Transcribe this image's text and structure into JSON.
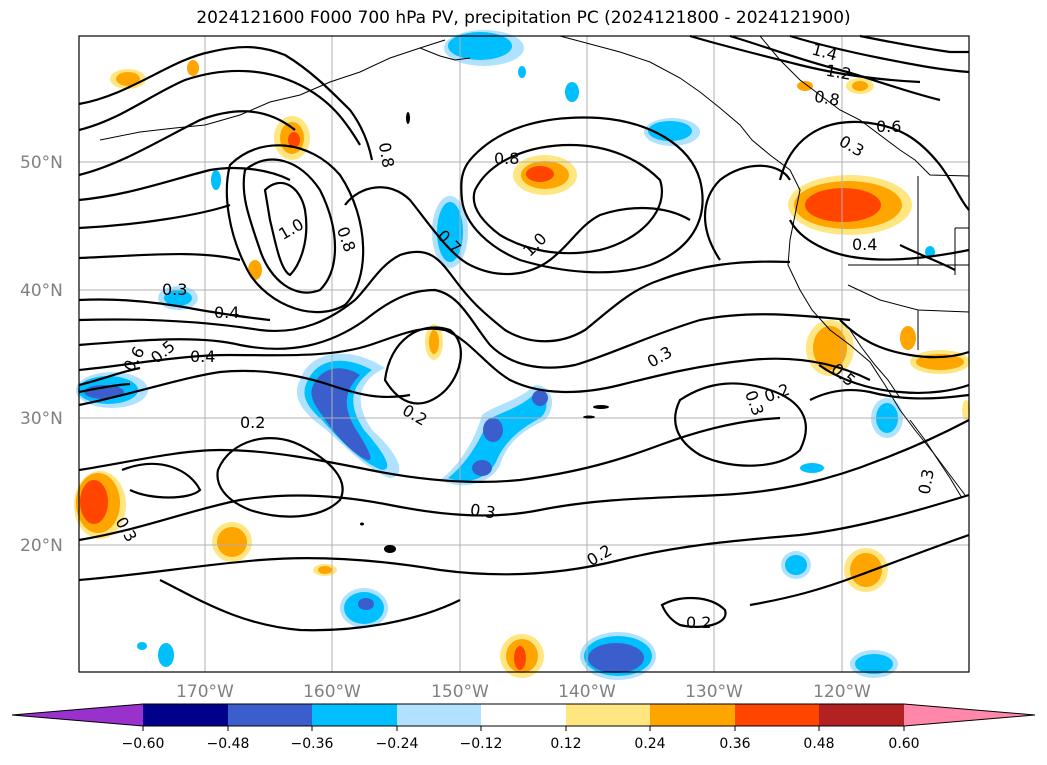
{
  "title": "2024121600 F000 700 hPa PV, precipitation PC (2024121800 - 2024121900)",
  "lat_labels": [
    "20°N",
    "30°N",
    "40°N",
    "50°N"
  ],
  "lon_labels": [
    "170°W",
    "160°W",
    "150°W",
    "140°W",
    "130°W",
    "120°W"
  ],
  "contour_labels": [
    "0.2",
    "0.2",
    "0.2",
    "0.2",
    "0.2",
    "0.3",
    "0.3",
    "0.3",
    "0.3",
    "0.3",
    "0.3",
    "0.3",
    "0.4",
    "0.4",
    "0.4",
    "0.5",
    "0.5",
    "0.6",
    "0.6",
    "0.7",
    "0.8",
    "0.8",
    "0.8",
    "0.8",
    "1.0",
    "1.0",
    "1.2",
    "1.4"
  ],
  "colorbar": {
    "ticks": [
      "−0.60",
      "−0.48",
      "−0.36",
      "−0.24",
      "−0.12",
      "0.12",
      "0.24",
      "0.36",
      "0.48",
      "0.60"
    ],
    "colors": [
      "#9932cc",
      "#00008b",
      "#3a5fcd",
      "#00bfff",
      "#b0e2ff",
      "#ffffff",
      "#ffe680",
      "#ffa500",
      "#ff4500",
      "#b22222",
      "#ff88aa"
    ]
  }
}
